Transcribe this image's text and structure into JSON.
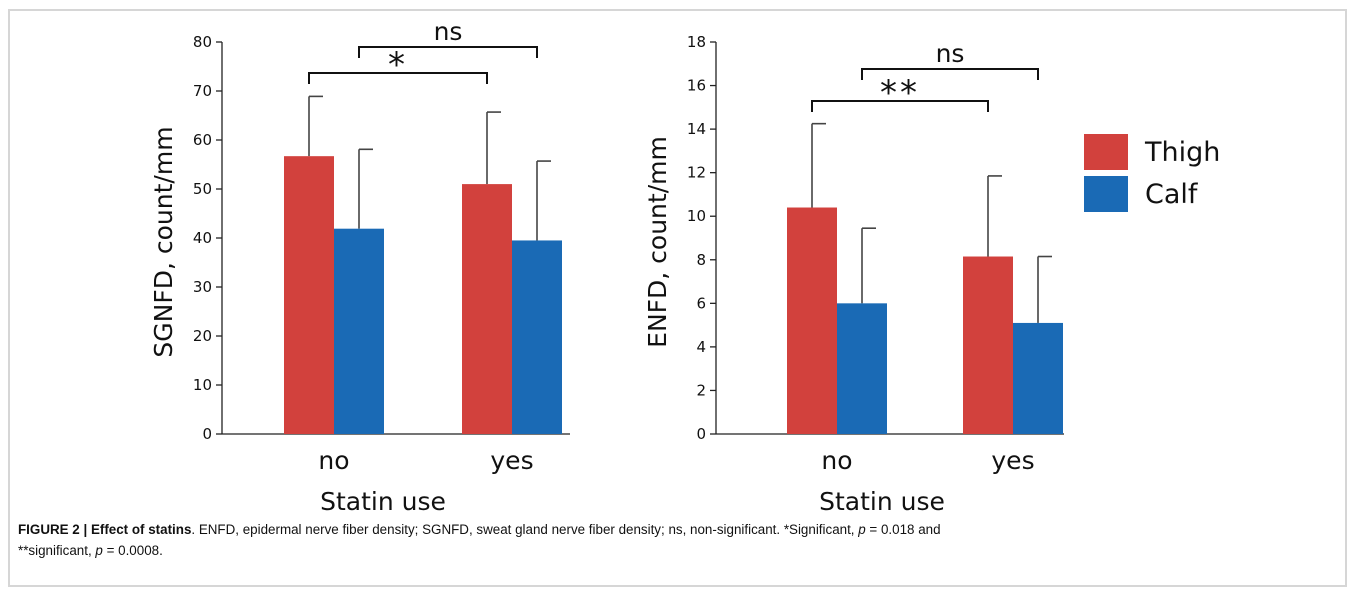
{
  "chart_data": [
    {
      "type": "bar",
      "panel": "left",
      "categories": [
        "no",
        "yes"
      ],
      "xlabel": "Statin use",
      "ylabel": "SGNFD, count/mm",
      "ylim": [
        0,
        80
      ],
      "yticks": [
        "0",
        "10",
        "20",
        "30",
        "40",
        "50",
        "60",
        "70",
        "80"
      ],
      "series": [
        {
          "name": "Thigh",
          "color": "#d2413d",
          "values": [
            56.7,
            51.0
          ],
          "errors": [
            12.2,
            14.7
          ]
        },
        {
          "name": "Calf",
          "color": "#1a6ab5",
          "values": [
            41.9,
            39.5
          ],
          "errors": [
            16.2,
            16.2
          ]
        }
      ],
      "brackets": [
        {
          "label": "*",
          "from": "no-Thigh",
          "to": "yes-Thigh"
        },
        {
          "label": "ns",
          "from": "no-Calf",
          "to": "yes-Calf"
        }
      ]
    },
    {
      "type": "bar",
      "panel": "right",
      "categories": [
        "no",
        "yes"
      ],
      "xlabel": "Statin use",
      "ylabel": "ENFD, count/mm",
      "ylim": [
        0,
        18
      ],
      "yticks": [
        "0",
        "2",
        "4",
        "6",
        "8",
        "10",
        "12",
        "14",
        "16",
        "18"
      ],
      "series": [
        {
          "name": "Thigh",
          "color": "#d2413d",
          "values": [
            10.4,
            8.15
          ],
          "errors": [
            3.85,
            3.7
          ]
        },
        {
          "name": "Calf",
          "color": "#1a6ab5",
          "values": [
            6.0,
            5.1
          ],
          "errors": [
            3.45,
            3.05
          ]
        }
      ],
      "brackets": [
        {
          "label": "**",
          "from": "no-Thigh",
          "to": "yes-Thigh"
        },
        {
          "label": "ns",
          "from": "no-Calf",
          "to": "yes-Calf"
        }
      ]
    }
  ],
  "legend": {
    "placement": "right",
    "items": [
      {
        "label": "Thigh",
        "color": "#d2413d"
      },
      {
        "label": "Calf",
        "color": "#1a6ab5"
      }
    ]
  },
  "caption": {
    "figure_label": "FIGURE 2 | Effect of statins",
    "text_part1": ". ENFD, epidermal nerve fiber density; SGNFD, sweat gland nerve fiber density; ns, non-significant. *Significant, ",
    "p_symbol": "p",
    "p1": " = 0.018 and",
    "text_part2": "**significant, ",
    "p2": " = 0.0008."
  }
}
